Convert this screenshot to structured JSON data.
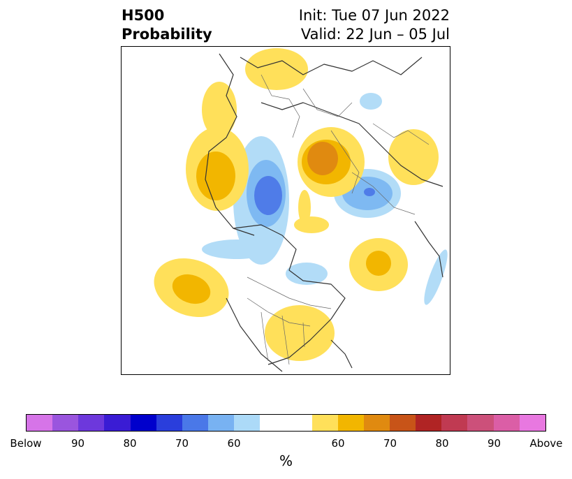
{
  "title": {
    "left_line1": "H500",
    "left_line2": "Probability",
    "right_line1": "Init: Tue 07 Jun 2022",
    "right_line2": "Valid: 22 Jun – 05 Jul"
  },
  "colorbar": {
    "unit": "%",
    "colors": [
      "#d674e8",
      "#9a55de",
      "#6d38dc",
      "#3a1cd4",
      "#0000cc",
      "#2a3edc",
      "#4a78e8",
      "#78b2f2",
      "#acdaf8",
      "#ffffff",
      "#ffffff",
      "#ffe05a",
      "#f2b600",
      "#e08a10",
      "#c85418",
      "#b02424",
      "#c03a52",
      "#cc507a",
      "#db5ea6",
      "#e878e0"
    ],
    "ticks": [
      "Below",
      "90",
      "80",
      "70",
      "60",
      "60",
      "70",
      "80",
      "90",
      "Above"
    ]
  },
  "map": {
    "categories": {
      "below": {
        "light": "#b2dcf7",
        "mid": "#7eb9f2",
        "deep": "#4f7ce8"
      },
      "above": {
        "light": "#ffe05a",
        "mid": "#f2b600",
        "deep": "#e08a10"
      }
    }
  }
}
